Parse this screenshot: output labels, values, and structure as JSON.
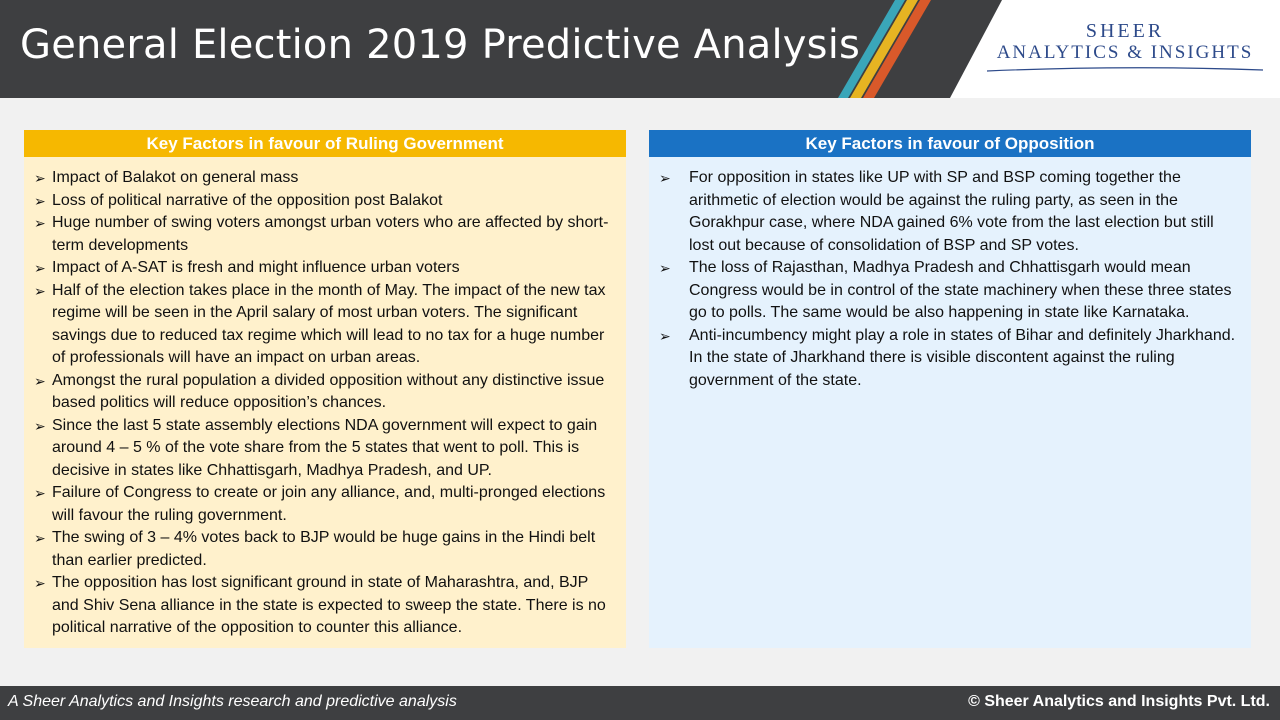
{
  "header": {
    "title": "General Election 2019 Predictive Analysis",
    "logo_line1": "SHEER",
    "logo_line2": "ANALYTICS & INSIGHTS",
    "stripe_colors": [
      "#3aa6b9",
      "#e6b422",
      "#d9592a",
      "#ffffff"
    ]
  },
  "left_panel": {
    "heading": "Key Factors in favour of Ruling Government",
    "color": "#f6b800",
    "items": [
      "Impact of Balakot on general mass",
      "Loss of political narrative of the opposition post Balakot",
      "Huge number of swing voters amongst urban voters who are affected by short-term developments",
      "Impact of A-SAT is fresh and might influence urban voters",
      "Half of the election takes place in the month of May. The impact of the new tax regime will be seen in the April salary of most urban voters. The significant savings due to reduced tax regime which will lead to no tax for a huge number of professionals will have an impact on urban areas.",
      "Amongst the rural population a divided opposition without any distinctive issue based politics will reduce opposition’s chances.",
      "Since the last 5 state assembly elections NDA government will expect to gain around 4 – 5 % of the vote share from the 5 states that went to poll. This is decisive in states like Chhattisgarh, Madhya Pradesh, and UP.",
      "Failure of Congress to create or join any alliance, and, multi-pronged elections will favour the ruling government.",
      "The swing of 3 – 4% votes back to BJP would be huge gains in the Hindi belt than earlier predicted.",
      "The opposition has lost significant ground in state of Maharashtra, and, BJP and Shiv Sena alliance in the state is expected to sweep the state. There is no political narrative of the opposition to counter this alliance."
    ]
  },
  "right_panel": {
    "heading": "Key Factors in favour of Opposition",
    "color": "#1a72c4",
    "items": [
      "For opposition in states like UP with SP and BSP coming together the arithmetic of election would be against the ruling party, as seen in the Gorakhpur case, where NDA gained 6% vote from the last election but still lost out because of consolidation of BSP and SP votes.",
      "The loss of Rajasthan, Madhya Pradesh and Chhattisgarh would mean Congress would be in control of the state machinery when these three states go to polls. The same would be also happening in state like Karnataka.",
      "Anti-incumbency might play a role in states of Bihar and definitely Jharkhand. In the state of Jharkhand there is visible discontent against the ruling government of the state."
    ]
  },
  "bullet_glyph": "➢",
  "footer": {
    "left_text": "A Sheer Analytics and Insights research and predictive analysis",
    "right_text": "© Sheer Analytics and Insights Pvt. Ltd."
  }
}
